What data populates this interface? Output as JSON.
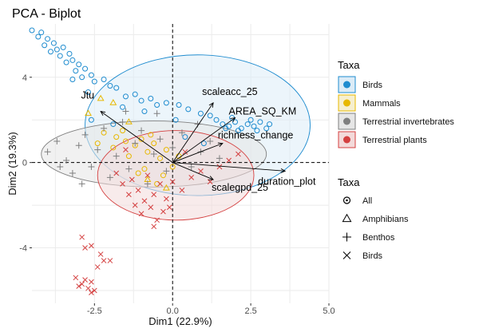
{
  "chart_data": {
    "type": "scatter",
    "title": "PCA - Biplot",
    "xlabel": "Dim1 (22.9%)",
    "ylabel": "Dim2 (19.3%)",
    "xlim": [
      -4.5,
      5.0
    ],
    "ylim": [
      -6.6,
      6.5
    ],
    "x_ticks": [
      -2.5,
      0.0,
      2.5,
      5.0
    ],
    "x_tick_labels": [
      "-2.5",
      "0.0",
      "2.5",
      "5.0"
    ],
    "y_ticks": [
      -4,
      0,
      4
    ],
    "y_tick_labels": [
      "-4",
      "0",
      "4"
    ],
    "grid": true,
    "reference_lines": {
      "x": 0,
      "y": 0,
      "style": "dashed"
    },
    "legend_color": {
      "title": "Taxa",
      "placement": "right",
      "entries": [
        {
          "label": "Birds",
          "color": "#1f8ccf",
          "fill": "#dcecf7"
        },
        {
          "label": "Mammals",
          "color": "#e7b800",
          "fill": "#f6efcf"
        },
        {
          "label": "Terrestrial invertebrates",
          "color": "#7f7f7f",
          "fill": "#e6e6e6"
        },
        {
          "label": "Terrestrial plants",
          "color": "#d44040",
          "fill": "#f3dada"
        }
      ]
    },
    "legend_shape": {
      "title": "Taxa",
      "placement": "right",
      "entries": [
        {
          "label": "All",
          "shape": "circle-dot"
        },
        {
          "label": "Amphibians",
          "shape": "triangle"
        },
        {
          "label": "Benthos",
          "shape": "plus"
        },
        {
          "label": "Birds",
          "shape": "cross"
        }
      ]
    },
    "variables": [
      {
        "name": "Jtu",
        "x": -2.3,
        "y": 2.4
      },
      {
        "name": "scaleacc_25",
        "x": 1.3,
        "y": 2.8
      },
      {
        "name": "AREA_SQ_KM",
        "x": 2.0,
        "y": 2.1
      },
      {
        "name": "richness_change",
        "x": 1.6,
        "y": 0.9
      },
      {
        "name": "duration_plot",
        "x": 3.6,
        "y": -0.4
      },
      {
        "name": "scalegpd_25",
        "x": 1.3,
        "y": -0.8
      }
    ],
    "ellipses": [
      {
        "taxa": "Birds",
        "cx": 0.8,
        "cy": 1.75,
        "rx": 3.6,
        "ry": 3.3
      },
      {
        "taxa": "Terrestrial invertebrates",
        "cx": -0.6,
        "cy": 0.4,
        "rx": 3.6,
        "ry": 1.55
      },
      {
        "taxa": "Terrestrial plants",
        "cx": 0.1,
        "cy": -0.6,
        "rx": 2.5,
        "ry": 2.1
      }
    ],
    "series": [
      {
        "name": "Birds",
        "shape": "All",
        "color": "#1f8ccf",
        "points": [
          [
            -4.5,
            6.2
          ],
          [
            -4.2,
            6.1
          ],
          [
            -4.0,
            5.8
          ],
          [
            -4.1,
            5.5
          ],
          [
            -3.8,
            5.6
          ],
          [
            -3.7,
            5.3
          ],
          [
            -3.5,
            5.4
          ],
          [
            -3.6,
            5.0
          ],
          [
            -3.3,
            5.1
          ],
          [
            -3.4,
            4.7
          ],
          [
            -3.2,
            4.8
          ],
          [
            -3.0,
            4.6
          ],
          [
            -3.1,
            4.3
          ],
          [
            -2.8,
            4.4
          ],
          [
            -2.9,
            4.0
          ],
          [
            -2.6,
            4.1
          ],
          [
            -2.5,
            3.8
          ],
          [
            -2.2,
            3.9
          ],
          [
            -2.0,
            3.6
          ],
          [
            -1.8,
            3.5
          ],
          [
            -1.5,
            3.1
          ],
          [
            -1.2,
            3.2
          ],
          [
            -1.0,
            2.9
          ],
          [
            -0.7,
            3.0
          ],
          [
            -0.5,
            2.7
          ],
          [
            -0.2,
            2.8
          ],
          [
            0.2,
            2.7
          ],
          [
            0.5,
            2.5
          ],
          [
            0.9,
            2.3
          ],
          [
            1.2,
            2.2
          ],
          [
            1.4,
            2.0
          ],
          [
            1.6,
            1.8
          ],
          [
            1.8,
            1.7
          ],
          [
            2.0,
            1.9
          ],
          [
            2.2,
            1.6
          ],
          [
            2.4,
            1.8
          ],
          [
            2.6,
            1.7
          ],
          [
            2.8,
            1.9
          ],
          [
            3.0,
            1.6
          ],
          [
            3.1,
            1.8
          ],
          [
            1.9,
            2.1
          ],
          [
            2.1,
            1.5
          ],
          [
            2.5,
            2.0
          ],
          [
            2.7,
            1.5
          ],
          [
            1.7,
            1.6
          ],
          [
            -2.6,
            2.0
          ],
          [
            -1.6,
            2.6
          ],
          [
            -0.9,
            2.4
          ],
          [
            0.1,
            2.0
          ],
          [
            -1.9,
            1.8
          ],
          [
            -3.2,
            3.9
          ],
          [
            -2.7,
            3.3
          ],
          [
            -4.3,
            5.9
          ],
          [
            -3.9,
            5.2
          ],
          [
            0.4,
            1.2
          ],
          [
            1.0,
            0.9
          ]
        ]
      },
      {
        "name": "Mammals",
        "shape": "All",
        "color": "#e7b800",
        "points": [
          [
            -2.2,
            1.4
          ],
          [
            -1.8,
            1.2
          ],
          [
            -1.5,
            1.0
          ],
          [
            -1.2,
            0.8
          ],
          [
            -1.0,
            1.1
          ],
          [
            -0.8,
            0.5
          ],
          [
            -0.6,
            0.9
          ],
          [
            -0.4,
            0.2
          ],
          [
            -0.2,
            0.6
          ],
          [
            0.0,
            -0.2
          ],
          [
            -1.4,
            0.3
          ],
          [
            -1.9,
            0.7
          ],
          [
            -0.9,
            -0.3
          ],
          [
            -0.3,
            -0.6
          ],
          [
            -1.6,
            1.5
          ],
          [
            -0.7,
            1.3
          ],
          [
            -2.4,
            0.9
          ],
          [
            0.2,
            0.3
          ],
          [
            -1.1,
            -0.5
          ],
          [
            -0.5,
            -1.0
          ]
        ]
      },
      {
        "name": "Mammals",
        "shape": "Amphibians",
        "color": "#e7b800",
        "points": [
          [
            -2.3,
            3.0
          ],
          [
            -1.9,
            2.8
          ],
          [
            -2.7,
            2.3
          ],
          [
            -1.4,
            1.9
          ],
          [
            -0.8,
            -0.8
          ],
          [
            -0.2,
            -1.2
          ]
        ]
      },
      {
        "name": "Terrestrial invertebrates",
        "shape": "Benthos",
        "color": "#7f7f7f",
        "points": [
          [
            -4.0,
            0.5
          ],
          [
            -3.7,
            1.0
          ],
          [
            -3.4,
            0.1
          ],
          [
            -3.2,
            -0.5
          ],
          [
            -3.0,
            0.8
          ],
          [
            -2.8,
            1.3
          ],
          [
            -2.6,
            -0.2
          ],
          [
            -2.4,
            0.6
          ],
          [
            -2.2,
            1.6
          ],
          [
            -2.0,
            -0.7
          ],
          [
            -1.8,
            0.3
          ],
          [
            -1.6,
            1.9
          ],
          [
            -1.4,
            -0.3
          ],
          [
            -1.2,
            0.9
          ],
          [
            -1.0,
            1.5
          ],
          [
            -0.8,
            -1.0
          ],
          [
            -0.6,
            0.4
          ],
          [
            -0.4,
            1.1
          ],
          [
            -0.2,
            -0.4
          ],
          [
            0.0,
            0.7
          ],
          [
            0.3,
            1.4
          ],
          [
            0.6,
            -0.2
          ],
          [
            0.9,
            0.5
          ],
          [
            1.2,
            1.0
          ],
          [
            1.5,
            0.2
          ],
          [
            -3.6,
            -0.2
          ],
          [
            -2.9,
            -1.0
          ],
          [
            -0.5,
            2.3
          ],
          [
            -1.5,
            2.4
          ],
          [
            0.8,
            1.8
          ]
        ]
      },
      {
        "name": "Terrestrial plants",
        "shape": "Birds",
        "color": "#d44040",
        "points": [
          [
            -1.8,
            -0.5
          ],
          [
            -1.6,
            -1.0
          ],
          [
            -1.4,
            -1.5
          ],
          [
            -1.3,
            -0.8
          ],
          [
            -1.2,
            -2.0
          ],
          [
            -1.1,
            -1.3
          ],
          [
            -1.0,
            -2.4
          ],
          [
            -0.9,
            -1.8
          ],
          [
            -0.8,
            -0.6
          ],
          [
            -0.7,
            -2.1
          ],
          [
            -0.6,
            -1.5
          ],
          [
            -0.5,
            -2.7
          ],
          [
            -0.4,
            -1.0
          ],
          [
            -0.3,
            -2.3
          ],
          [
            -0.2,
            -1.7
          ],
          [
            0.0,
            -0.9
          ],
          [
            0.3,
            -1.3
          ],
          [
            0.6,
            -0.7
          ],
          [
            0.9,
            -0.4
          ],
          [
            1.2,
            -0.9
          ],
          [
            1.5,
            -0.2
          ],
          [
            1.8,
            0.1
          ],
          [
            2.1,
            0.4
          ],
          [
            0.4,
            0.5
          ],
          [
            -1.5,
            0.6
          ],
          [
            -2.9,
            -3.5
          ],
          [
            -2.6,
            -3.9
          ],
          [
            -2.3,
            -4.3
          ],
          [
            -2.8,
            -4.0
          ],
          [
            -2.2,
            -4.6
          ],
          [
            -2.0,
            -4.6
          ],
          [
            -2.4,
            -4.9
          ],
          [
            -3.1,
            -5.4
          ],
          [
            -2.9,
            -5.7
          ],
          [
            -2.7,
            -5.9
          ],
          [
            -2.6,
            -6.1
          ],
          [
            -2.5,
            -6.0
          ],
          [
            -2.8,
            -5.5
          ],
          [
            -3.0,
            -5.8
          ],
          [
            -2.6,
            -5.6
          ],
          [
            -0.1,
            -2.1
          ],
          [
            -0.6,
            -3.0
          ]
        ]
      }
    ]
  }
}
